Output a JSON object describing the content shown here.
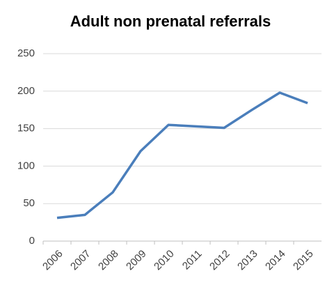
{
  "chart_data": {
    "type": "line",
    "title": "Adult non prenatal referrals",
    "categories": [
      "2006",
      "2007",
      "2008",
      "2009",
      "2010",
      "2011",
      "2012",
      "2013",
      "2014",
      "2015"
    ],
    "series": [
      {
        "name": "Adult non prenatal referrals",
        "color": "#4a7ebb",
        "values": [
          31,
          35,
          65,
          120,
          155,
          153,
          151,
          175,
          198,
          184
        ]
      }
    ],
    "ylim": [
      0,
      250
    ],
    "yticks": [
      0,
      50,
      100,
      150,
      200,
      250
    ],
    "grid": true
  }
}
